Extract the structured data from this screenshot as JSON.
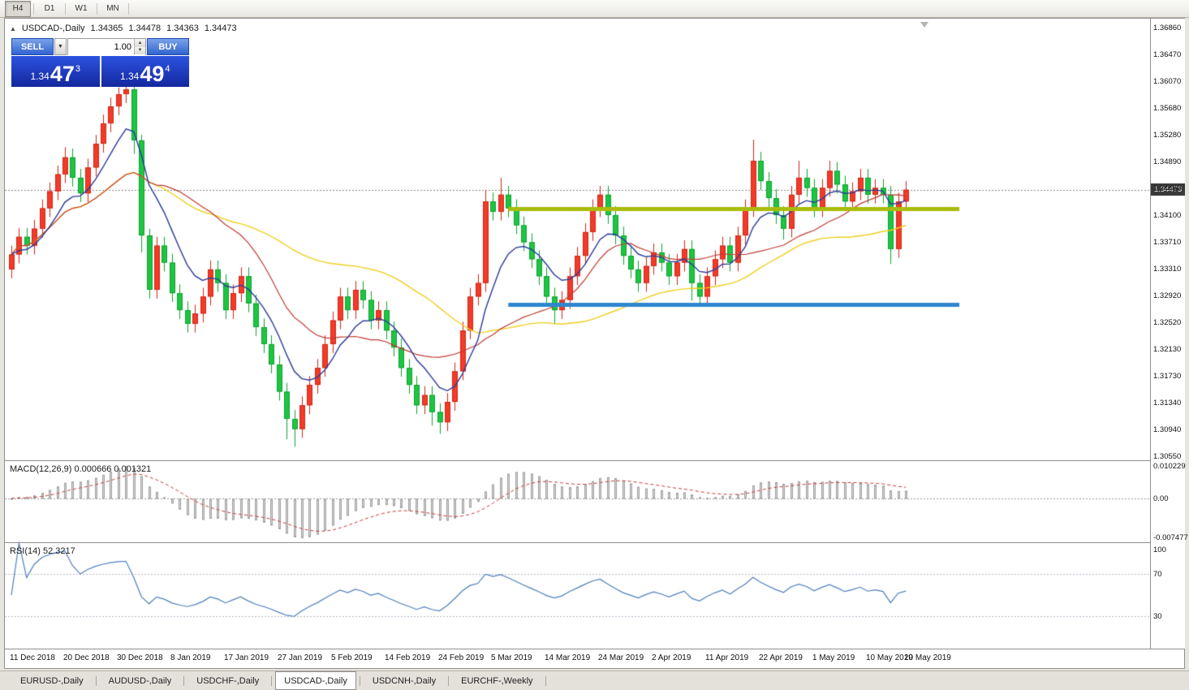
{
  "toolbar": {
    "timeframes": [
      {
        "label": "H4",
        "active": true
      },
      {
        "label": "D1",
        "active": false
      },
      {
        "label": "W1",
        "active": false
      },
      {
        "label": "MN",
        "active": false
      }
    ]
  },
  "window": {
    "symbol": "USDCAD-,Daily",
    "ohlc": {
      "open": "1.34365",
      "high": "1.34478",
      "low": "1.34363",
      "close": "1.34473"
    }
  },
  "trade_panel": {
    "sell_label": "SELL",
    "buy_label": "BUY",
    "volume": "1.00",
    "sell_quote": {
      "prefix": "1.34",
      "big": "47",
      "sup": "3"
    },
    "buy_quote": {
      "prefix": "1.34",
      "big": "49",
      "sup": "4"
    }
  },
  "tabs": [
    {
      "label": "EURUSD-,Daily",
      "active": false
    },
    {
      "label": "AUDUSD-,Daily",
      "active": false
    },
    {
      "label": "USDCHF-,Daily",
      "active": false
    },
    {
      "label": "USDCAD-,Daily",
      "active": true
    },
    {
      "label": "USDCNH-,Daily",
      "active": false
    },
    {
      "label": "EURCHF-,Weekly",
      "active": false
    }
  ],
  "chart_data": {
    "type": "candlestick",
    "symbol": "USDCAD",
    "timeframe": "Daily",
    "ylim": [
      1.3055,
      1.3686
    ],
    "colors": {
      "up": "#f23b29",
      "down": "#1ec543",
      "up_border": "#d02818",
      "down_border": "#0ea32f"
    },
    "candles": {
      "open": [
        1.333,
        1.3352,
        1.3378,
        1.3365,
        1.339,
        1.342,
        1.3445,
        1.347,
        1.3495,
        1.3465,
        1.3442,
        1.348,
        1.3515,
        1.3545,
        1.357,
        1.3588,
        1.3595,
        1.352,
        1.338,
        1.33,
        1.3365,
        1.334,
        1.3295,
        1.327,
        1.325,
        1.3265,
        1.329,
        1.333,
        1.331,
        1.327,
        1.3295,
        1.332,
        1.328,
        1.3245,
        1.322,
        1.319,
        1.315,
        1.311,
        1.3095,
        1.313,
        1.316,
        1.3185,
        1.322,
        1.3255,
        1.329,
        1.327,
        1.33,
        1.3285,
        1.3255,
        1.327,
        1.324,
        1.3215,
        1.3185,
        1.316,
        1.313,
        1.3145,
        1.312,
        1.3105,
        1.3135,
        1.318,
        1.324,
        1.329,
        1.331,
        1.343,
        1.3415,
        1.344,
        1.342,
        1.3395,
        1.337,
        1.3345,
        1.332,
        1.329,
        1.327,
        1.3285,
        1.332,
        1.335,
        1.3385,
        1.342,
        1.344,
        1.341,
        1.338,
        1.335,
        1.333,
        1.331,
        1.3335,
        1.3355,
        1.334,
        1.332,
        1.334,
        1.336,
        1.331,
        1.329,
        1.332,
        1.3345,
        1.3365,
        1.334,
        1.338,
        1.342,
        1.349,
        1.346,
        1.3435,
        1.341,
        1.339,
        1.344,
        1.3465,
        1.345,
        1.342,
        1.345,
        1.3475,
        1.3455,
        1.343,
        1.3445,
        1.3465,
        1.344,
        1.345,
        1.344,
        1.336,
        1.343
      ],
      "high": [
        1.3365,
        1.3391,
        1.3391,
        1.3403,
        1.3433,
        1.3458,
        1.3483,
        1.351,
        1.3508,
        1.3478,
        1.3493,
        1.3528,
        1.3558,
        1.3583,
        1.3598,
        1.36,
        1.3602,
        1.3528,
        1.339,
        1.3378,
        1.3378,
        1.3353,
        1.3308,
        1.3283,
        1.3278,
        1.3303,
        1.3343,
        1.3343,
        1.3323,
        1.3308,
        1.3333,
        1.3333,
        1.3293,
        1.3258,
        1.3233,
        1.3203,
        1.3163,
        1.3123,
        1.3143,
        1.3173,
        1.3198,
        1.3233,
        1.3268,
        1.3303,
        1.3303,
        1.3313,
        1.3313,
        1.3298,
        1.3283,
        1.3283,
        1.3253,
        1.3228,
        1.3198,
        1.3173,
        1.3158,
        1.3158,
        1.3133,
        1.3148,
        1.3193,
        1.3253,
        1.3303,
        1.3323,
        1.3447,
        1.3443,
        1.3465,
        1.3453,
        1.3433,
        1.3408,
        1.3383,
        1.3358,
        1.3333,
        1.3303,
        1.3298,
        1.3333,
        1.3363,
        1.3398,
        1.3433,
        1.3453,
        1.3453,
        1.3423,
        1.3393,
        1.3363,
        1.3343,
        1.3348,
        1.3368,
        1.3368,
        1.3353,
        1.3353,
        1.3373,
        1.3373,
        1.3323,
        1.3333,
        1.3358,
        1.3378,
        1.3378,
        1.3393,
        1.3433,
        1.3521,
        1.3503,
        1.3473,
        1.3448,
        1.3423,
        1.3453,
        1.349,
        1.3478,
        1.3463,
        1.3463,
        1.349,
        1.3488,
        1.3468,
        1.3458,
        1.3478,
        1.3478,
        1.3463,
        1.3463,
        1.3453,
        1.3443,
        1.346
      ],
      "low": [
        1.3317,
        1.3339,
        1.3352,
        1.3352,
        1.3377,
        1.3407,
        1.3432,
        1.3457,
        1.3452,
        1.3429,
        1.3429,
        1.3467,
        1.3502,
        1.3532,
        1.3557,
        1.3575,
        1.35,
        1.3355,
        1.3287,
        1.3287,
        1.3327,
        1.3282,
        1.3257,
        1.3237,
        1.3237,
        1.3252,
        1.3277,
        1.3297,
        1.3257,
        1.3257,
        1.3282,
        1.3267,
        1.3232,
        1.3207,
        1.3177,
        1.3137,
        1.308,
        1.3069,
        1.3082,
        1.3117,
        1.3147,
        1.3172,
        1.3207,
        1.3242,
        1.3257,
        1.3257,
        1.3272,
        1.3242,
        1.3242,
        1.3227,
        1.3202,
        1.3172,
        1.3147,
        1.3117,
        1.3117,
        1.31,
        1.3088,
        1.3092,
        1.3122,
        1.3167,
        1.3227,
        1.3277,
        1.3297,
        1.3402,
        1.3402,
        1.3407,
        1.3382,
        1.3357,
        1.3332,
        1.3307,
        1.3277,
        1.325,
        1.3257,
        1.3272,
        1.3307,
        1.3337,
        1.3372,
        1.3407,
        1.3397,
        1.3367,
        1.3337,
        1.3317,
        1.3297,
        1.3297,
        1.3322,
        1.3327,
        1.3307,
        1.3307,
        1.3327,
        1.3284,
        1.3275,
        1.3277,
        1.3307,
        1.3332,
        1.3327,
        1.3327,
        1.3367,
        1.3407,
        1.3447,
        1.3422,
        1.3397,
        1.3374,
        1.3377,
        1.3427,
        1.3437,
        1.3407,
        1.3407,
        1.3437,
        1.3442,
        1.3417,
        1.3417,
        1.3432,
        1.3427,
        1.3427,
        1.3427,
        1.3338,
        1.3347,
        1.3417
      ],
      "close": [
        1.3352,
        1.3378,
        1.3365,
        1.339,
        1.342,
        1.3445,
        1.347,
        1.3495,
        1.3465,
        1.3442,
        1.348,
        1.3515,
        1.3545,
        1.357,
        1.3588,
        1.3595,
        1.352,
        1.338,
        1.33,
        1.3365,
        1.334,
        1.3295,
        1.327,
        1.325,
        1.3265,
        1.329,
        1.333,
        1.331,
        1.327,
        1.3295,
        1.332,
        1.328,
        1.3245,
        1.322,
        1.319,
        1.315,
        1.311,
        1.3095,
        1.313,
        1.316,
        1.3185,
        1.322,
        1.3255,
        1.329,
        1.327,
        1.33,
        1.3285,
        1.3255,
        1.327,
        1.324,
        1.3215,
        1.3185,
        1.316,
        1.313,
        1.3145,
        1.312,
        1.3105,
        1.3135,
        1.318,
        1.324,
        1.329,
        1.331,
        1.343,
        1.3415,
        1.344,
        1.342,
        1.3395,
        1.337,
        1.3345,
        1.332,
        1.329,
        1.327,
        1.3285,
        1.332,
        1.335,
        1.3385,
        1.342,
        1.344,
        1.341,
        1.338,
        1.335,
        1.333,
        1.331,
        1.3335,
        1.3355,
        1.334,
        1.332,
        1.334,
        1.336,
        1.331,
        1.329,
        1.332,
        1.3345,
        1.3365,
        1.334,
        1.338,
        1.342,
        1.349,
        1.346,
        1.3435,
        1.341,
        1.339,
        1.344,
        1.3465,
        1.345,
        1.342,
        1.345,
        1.3475,
        1.3455,
        1.343,
        1.3445,
        1.3465,
        1.344,
        1.345,
        1.344,
        1.336,
        1.343,
        1.34473
      ]
    },
    "price_ticks": [
      "1.36860",
      "1.36470",
      "1.36070",
      "1.35680",
      "1.35280",
      "1.34890",
      "1.34490",
      "1.34100",
      "1.33710",
      "1.33310",
      "1.32920",
      "1.32520",
      "1.32130",
      "1.31730",
      "1.31340",
      "1.30940",
      "1.30550"
    ],
    "date_ticks": {
      "labels": [
        "11 Dec 2018",
        "20 Dec 2018",
        "30 Dec 2018",
        "8 Jan 2019",
        "17 Jan 2019",
        "27 Jan 2019",
        "5 Feb 2019",
        "14 Feb 2019",
        "24 Feb 2019",
        "5 Mar 2019",
        "14 Mar 2019",
        "24 Mar 2019",
        "2 Apr 2019",
        "11 Apr 2019",
        "22 Apr 2019",
        "1 May 2019",
        "10 May 2019",
        "20 May 2019"
      ],
      "indices": [
        0,
        7,
        14,
        21,
        28,
        35,
        42,
        49,
        56,
        63,
        70,
        77,
        84,
        91,
        98,
        105,
        112,
        117
      ]
    },
    "overlays": [
      {
        "name": "ma-slow",
        "type": "sma",
        "period": 45,
        "color": "#f0cf1e",
        "width": 1.4
      },
      {
        "name": "ma-mid",
        "type": "sma",
        "period": 20,
        "color": "#c23a33",
        "width": 1.2
      },
      {
        "name": "ma-fast",
        "type": "ema",
        "period": 8,
        "color": "#2a3a9a",
        "width": 1.4
      }
    ],
    "hlines": [
      {
        "name": "resistance-line",
        "price": 1.342,
        "color": "#a8bc0a",
        "width": 5,
        "x1_index": 65,
        "x2_index": 124
      },
      {
        "name": "support-line",
        "price": 1.3278,
        "color": "#2e86cf",
        "width": 5,
        "x1_index": 65,
        "x2_index": 124
      }
    ],
    "current_price": 1.34473,
    "current_price_label": "1.34473",
    "indicators": {
      "macd": {
        "label": "MACD(12,26,9) 0.000666 0.001321",
        "fast": 12,
        "slow": 26,
        "signal": 9,
        "scale_labels": [
          "0.010229",
          "0.00",
          "-0.007477"
        ],
        "histogram_color": "#d6d6d6",
        "histogram_border": "#a0a0a0",
        "signal_color": "#cc3b3b"
      },
      "rsi": {
        "label": "RSI(14) 52.3217",
        "period": 14,
        "levels": [
          70,
          30
        ],
        "scale_labels": [
          "100",
          "70",
          "30"
        ],
        "line_color": "#4e7fbe"
      }
    }
  }
}
